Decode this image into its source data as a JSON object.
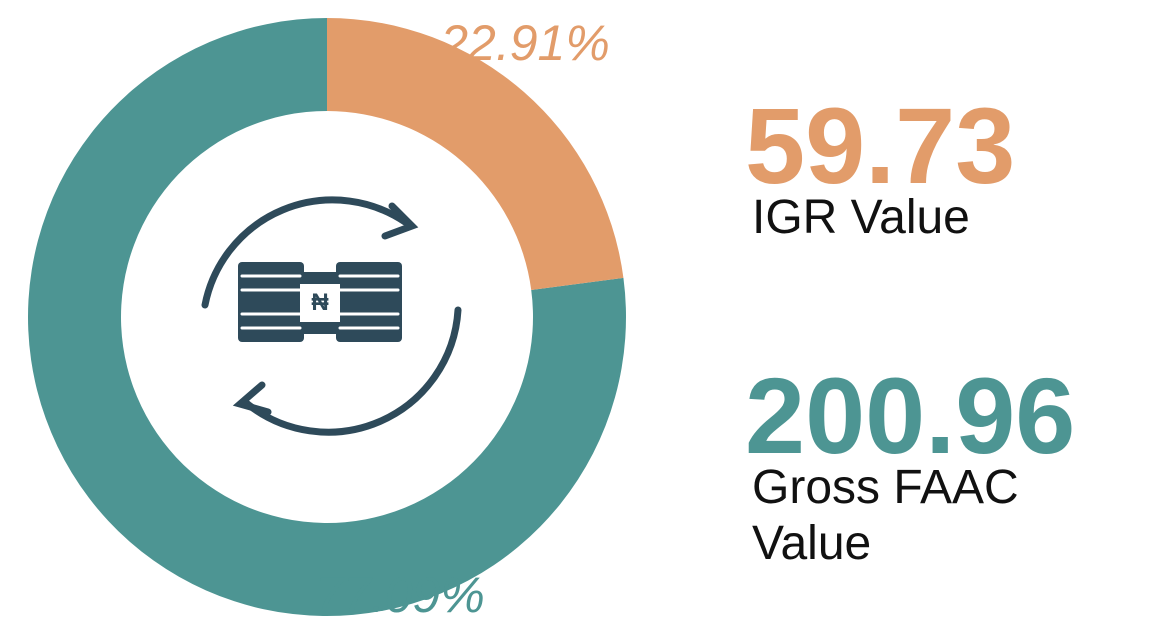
{
  "chart_data": {
    "type": "donut",
    "values": [
      22.91,
      77.09
    ],
    "value_labels": [
      "22.91%",
      "77.09%"
    ],
    "colors": [
      "#e29c6a",
      "#4d9593"
    ],
    "stats": [
      {
        "value": 59.73,
        "label": "IGR Value",
        "color": "#e29c6a"
      },
      {
        "value": 200.96,
        "label": "Gross FAAC Value",
        "color": "#4d9593"
      }
    ]
  }
}
